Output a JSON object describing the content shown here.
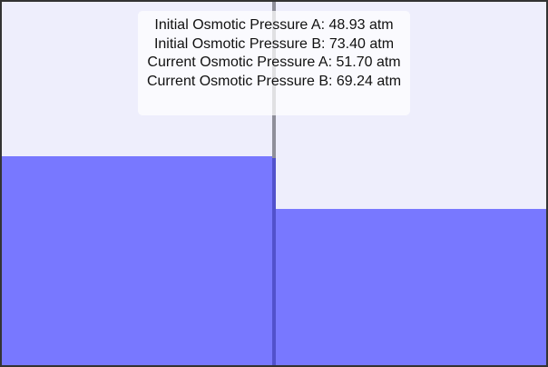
{
  "readouts": {
    "initial_a": "Initial Osmotic Pressure A: 48.93 atm",
    "initial_b": "Initial Osmotic Pressure B: 73.40 atm",
    "current_a": "Current Osmotic Pressure A: 51.70 atm",
    "current_b": "Current Osmotic Pressure B: 69.24 atm"
  },
  "chambers": {
    "a": {
      "fill_fraction": 0.575
    },
    "b": {
      "fill_fraction": 0.43
    }
  },
  "colors": {
    "solution": "#7878ff",
    "background": "#eeeefc",
    "membrane": "#8f8f9a",
    "border": "#333333"
  }
}
